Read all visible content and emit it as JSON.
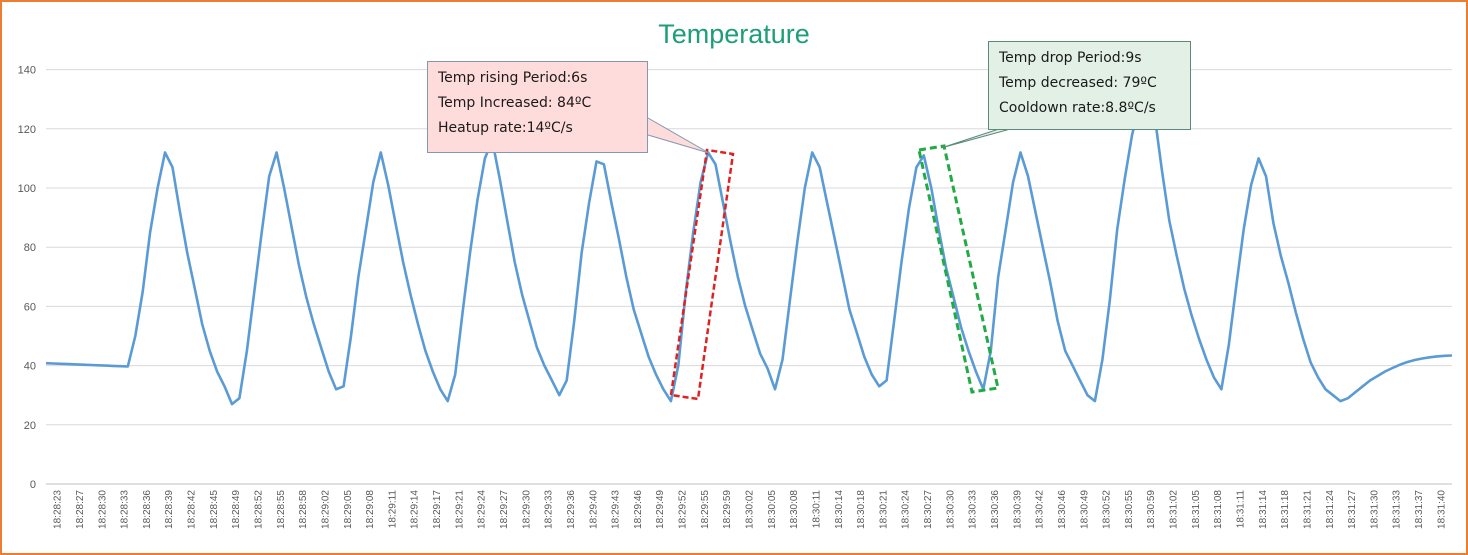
{
  "chart_data": {
    "type": "line",
    "title": "Temperature",
    "xlabel": "",
    "ylabel": "",
    "ylim": [
      0,
      150
    ],
    "yticks": [
      0,
      20,
      40,
      60,
      80,
      100,
      120,
      140
    ],
    "grid": true,
    "legend": "none",
    "line_color": "#5B9BD5",
    "xticks": [
      "18:28:23",
      "18:28:27",
      "18:28:30",
      "18:28:33",
      "18:28:36",
      "18:28:39",
      "18:28:42",
      "18:28:45",
      "18:28:49",
      "18:28:52",
      "18:28:55",
      "18:28:58",
      "18:29:02",
      "18:29:05",
      "18:29:08",
      "18:29:11",
      "18:29:14",
      "18:29:17",
      "18:29:21",
      "18:29:24",
      "18:29:27",
      "18:29:30",
      "18:29:33",
      "18:29:36",
      "18:29:40",
      "18:29:43",
      "18:29:46",
      "18:29:49",
      "18:29:52",
      "18:29:55",
      "18:29:59",
      "18:30:02",
      "18:30:05",
      "18:30:08",
      "18:30:11",
      "18:30:14",
      "18:30:18",
      "18:30:21",
      "18:30:24",
      "18:30:27",
      "18:30:30",
      "18:30:33",
      "18:30:36",
      "18:30:39",
      "18:30:42",
      "18:30:46",
      "18:30:49",
      "18:30:52",
      "18:30:55",
      "18:30:59",
      "18:31:02",
      "18:31:05",
      "18:31:08",
      "18:31:11",
      "18:31:14",
      "18:31:18",
      "18:31:21",
      "18:31:24",
      "18:31:27",
      "18:31:30",
      "18:31:33",
      "18:31:37",
      "18:31:40"
    ],
    "series": [
      {
        "values": [
          40.8,
          40.7,
          40.6,
          40.5,
          40.4,
          40.3,
          40.2,
          40.1,
          40,
          39.9,
          39.8,
          39.7,
          50,
          65,
          85,
          100,
          112,
          107,
          92,
          78,
          66,
          54,
          45,
          38,
          33,
          27,
          29,
          45,
          65,
          85,
          104,
          112,
          100,
          87,
          74,
          63,
          54,
          46,
          38,
          32,
          33,
          50,
          70,
          86,
          102,
          112,
          101,
          88,
          75,
          64,
          54,
          45,
          38,
          32,
          28,
          37,
          58,
          78,
          96,
          110,
          116,
          103,
          89,
          75,
          64,
          55,
          46,
          40,
          35,
          30,
          35,
          55,
          78,
          95,
          109,
          108,
          95,
          83,
          70,
          59,
          51,
          43,
          37,
          32,
          28,
          40,
          65,
          85,
          102,
          112,
          108,
          95,
          82,
          70,
          60,
          52,
          44,
          39,
          32,
          42,
          62,
          82,
          100,
          112,
          107,
          95,
          83,
          71,
          59,
          51,
          43,
          37,
          33,
          35,
          55,
          75,
          93,
          107,
          111,
          100,
          86,
          73,
          63,
          53,
          45,
          38,
          32,
          45,
          70,
          86,
          102,
          112,
          104,
          92,
          80,
          68,
          55,
          45,
          40,
          35,
          30,
          28,
          42,
          62,
          86,
          103,
          118,
          128,
          134,
          125,
          106,
          89,
          77,
          66,
          57,
          49,
          42,
          36,
          32,
          47,
          67,
          86,
          101,
          110,
          104,
          88,
          77,
          68,
          58,
          49,
          41,
          36,
          32,
          30,
          28,
          29,
          31,
          33,
          35,
          36.5,
          38,
          39.2,
          40.3,
          41.2,
          41.9,
          42.4,
          42.8,
          43.1,
          43.3,
          43.4
        ]
      }
    ],
    "annotations": [
      {
        "lines": [
          "Temp rising Period:6s",
          "Temp Increased: 84ºC",
          "Heatup rate:14ºC/s"
        ],
        "color": "#FFDCDC",
        "highlight_color": "#DD2222"
      },
      {
        "lines": [
          "Temp drop Period:9s",
          "Temp decreased: 79ºC",
          "Cooldown rate:8.8ºC/s"
        ],
        "color": "#E2F0E6",
        "highlight_color": "#22AA44"
      }
    ]
  }
}
